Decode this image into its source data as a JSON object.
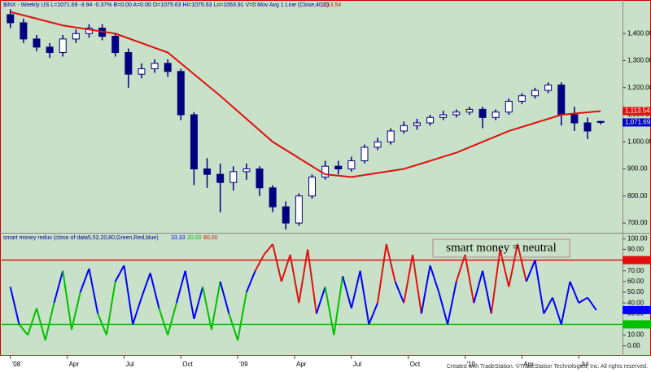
{
  "chart_data": [
    {
      "type": "candlestick",
      "title": "$INX - Weekly US L=1071.69 -3.94 -0.37% B=0.00 A=0.00 O=1075.63 Hi=1075.63 Lo=1063.91 V=0 Mov Avg 1 Line (Close,40,0)",
      "ma_label": "1113.54",
      "x": [
        0,
        3,
        6,
        9,
        12,
        15,
        18,
        21,
        24,
        27,
        30,
        33,
        36,
        39,
        42,
        45,
        48,
        51,
        54,
        57,
        60,
        63,
        66,
        69,
        72,
        75,
        78,
        81,
        84,
        87,
        90,
        93,
        96,
        99,
        102,
        105,
        108,
        111,
        114,
        117,
        120,
        123,
        126,
        129,
        132,
        135
      ],
      "open": [
        1470,
        1440,
        1380,
        1350,
        1330,
        1380,
        1400,
        1420,
        1390,
        1330,
        1250,
        1270,
        1290,
        1260,
        1100,
        900,
        880,
        850,
        890,
        900,
        830,
        760,
        700,
        800,
        870,
        910,
        900,
        930,
        980,
        1000,
        1040,
        1060,
        1070,
        1090,
        1100,
        1110,
        1120,
        1090,
        1110,
        1150,
        1170,
        1190,
        1210,
        1100,
        1070,
        1075.63
      ],
      "high": [
        1490,
        1455,
        1395,
        1365,
        1395,
        1415,
        1435,
        1435,
        1400,
        1345,
        1290,
        1305,
        1305,
        1270,
        1110,
        940,
        920,
        910,
        920,
        910,
        840,
        780,
        810,
        880,
        930,
        930,
        945,
        990,
        1015,
        1050,
        1075,
        1085,
        1100,
        1115,
        1120,
        1130,
        1130,
        1120,
        1160,
        1180,
        1200,
        1220,
        1220,
        1130,
        1090,
        1075.63
      ],
      "low": [
        1420,
        1365,
        1335,
        1310,
        1315,
        1365,
        1385,
        1375,
        1315,
        1200,
        1235,
        1255,
        1240,
        1080,
        840,
        830,
        740,
        820,
        860,
        800,
        740,
        676,
        690,
        790,
        860,
        880,
        890,
        920,
        970,
        990,
        1030,
        1045,
        1060,
        1080,
        1090,
        1100,
        1050,
        1080,
        1100,
        1140,
        1160,
        1180,
        1060,
        1040,
        1010,
        1063.91
      ],
      "close": [
        1440,
        1380,
        1350,
        1330,
        1380,
        1400,
        1420,
        1390,
        1330,
        1250,
        1270,
        1290,
        1260,
        1100,
        900,
        880,
        850,
        890,
        900,
        830,
        760,
        700,
        800,
        870,
        910,
        900,
        930,
        980,
        1000,
        1040,
        1060,
        1070,
        1090,
        1100,
        1110,
        1120,
        1090,
        1110,
        1150,
        1170,
        1190,
        1210,
        1100,
        1070,
        1040,
        1071.69
      ],
      "up_color": "#ffffff",
      "down_color": "#000080",
      "ma": {
        "color": "#e01010",
        "x": [
          0,
          12,
          24,
          36,
          48,
          60,
          72,
          78,
          90,
          102,
          114,
          126,
          135
        ],
        "values": [
          1480,
          1430,
          1400,
          1330,
          1170,
          1000,
          880,
          870,
          900,
          960,
          1040,
          1100,
          1113.54
        ]
      },
      "xlim": [
        -2,
        140
      ],
      "ylim": [
        670,
        1500
      ],
      "yticks": [
        {
          "value": 700,
          "label": "700.00"
        },
        {
          "value": 800,
          "label": "800.00"
        },
        {
          "value": 900,
          "label": "900.00"
        },
        {
          "value": 1000,
          "label": "1,000.00"
        },
        {
          "value": 1100,
          "label": "1,100.00"
        },
        {
          "value": 1200,
          "label": "1,200.00"
        },
        {
          "value": 1300,
          "label": "1,300.00"
        },
        {
          "value": 1400,
          "label": "1,400.00"
        }
      ],
      "markers": [
        {
          "value": 1113.54,
          "label": "1,113.54",
          "color": "#e01010"
        },
        {
          "value": 1071.69,
          "label": "1,071.69",
          "color": "#0000c0"
        }
      ]
    },
    {
      "type": "line",
      "title": "smart money redux (close of data5,52,20,80,Green,Red,blue)",
      "header_values": [
        {
          "label": "33.33",
          "color": "#0000ff"
        },
        {
          "label": "20.00",
          "color": "#00b000"
        },
        {
          "label": "80.00",
          "color": "#e01010"
        }
      ],
      "annotation": "smart money = neutral",
      "x": [
        0,
        2,
        4,
        6,
        8,
        10,
        12,
        14,
        16,
        18,
        20,
        22,
        24,
        26,
        28,
        30,
        32,
        34,
        36,
        38,
        40,
        42,
        44,
        46,
        48,
        50,
        52,
        54,
        56,
        58,
        60,
        62,
        64,
        66,
        68,
        70,
        72,
        74,
        76,
        78,
        80,
        82,
        84,
        86,
        88,
        90,
        92,
        94,
        96,
        98,
        100,
        102,
        104,
        106,
        108,
        110,
        112,
        114,
        116,
        118,
        120,
        122,
        124,
        126,
        128,
        130,
        132,
        134
      ],
      "values": [
        55,
        20,
        10,
        35,
        5,
        40,
        70,
        15,
        50,
        72,
        30,
        10,
        60,
        75,
        20,
        45,
        68,
        35,
        10,
        40,
        70,
        25,
        55,
        15,
        60,
        30,
        5,
        50,
        70,
        85,
        95,
        60,
        85,
        40,
        90,
        30,
        55,
        10,
        65,
        35,
        70,
        20,
        40,
        95,
        60,
        40,
        85,
        30,
        75,
        50,
        20,
        60,
        85,
        40,
        70,
        30,
        90,
        55,
        95,
        60,
        80,
        30,
        45,
        20,
        60,
        40,
        45,
        33.33
      ],
      "color": "#0000ff",
      "upper": 80,
      "upper_color": "#e01010",
      "lower": 20,
      "lower_color": "#00c000",
      "xlim": [
        -2,
        140
      ],
      "ylim": [
        -4,
        104
      ],
      "yticks": [
        {
          "value": 0,
          "label": "0.00"
        },
        {
          "value": 10,
          "label": "10.00"
        },
        {
          "value": 20,
          "label": "20.00"
        },
        {
          "value": 30,
          "label": "30.00"
        },
        {
          "value": 40,
          "label": "40.00"
        },
        {
          "value": 50,
          "label": "50.00"
        },
        {
          "value": 60,
          "label": "60.00"
        },
        {
          "value": 70,
          "label": "70.00"
        },
        {
          "value": 80,
          "label": "80.00"
        },
        {
          "value": 90,
          "label": "90.00"
        },
        {
          "value": 100,
          "label": "100.00"
        }
      ],
      "xticks": [
        {
          "value": 0,
          "label": "'08"
        },
        {
          "value": 13,
          "label": "Apr"
        },
        {
          "value": 26,
          "label": "Jul"
        },
        {
          "value": 39,
          "label": "Oct"
        },
        {
          "value": 52,
          "label": "'09"
        },
        {
          "value": 65,
          "label": "Apr"
        },
        {
          "value": 78,
          "label": "Jul"
        },
        {
          "value": 91,
          "label": "Oct"
        },
        {
          "value": 104,
          "label": "'10"
        },
        {
          "value": 117,
          "label": "Apr"
        },
        {
          "value": 130,
          "label": "Jul"
        }
      ]
    }
  ],
  "footer": "Created with TradeStation. ©TradeStation Technologies, Inc. All rights reserved."
}
